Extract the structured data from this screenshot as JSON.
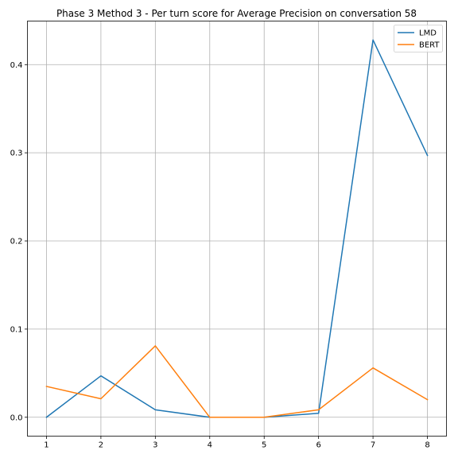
{
  "chart_data": {
    "type": "line",
    "title": "Phase 3 Method 3 - Per turn score for Average Precision on conversation 58",
    "xlabel": "",
    "ylabel": "",
    "x": [
      1,
      2,
      3,
      4,
      5,
      6,
      7,
      8
    ],
    "xticks": [
      "1",
      "2",
      "3",
      "4",
      "5",
      "6",
      "7",
      "8"
    ],
    "yticks": [
      "0.0",
      "0.1",
      "0.2",
      "0.3",
      "0.4"
    ],
    "xlim": [
      0.65,
      8.35
    ],
    "ylim": [
      -0.0214,
      0.4494
    ],
    "grid": true,
    "legend_position": "top-right",
    "series": [
      {
        "name": "LMD",
        "color": "#1f77b4",
        "values": [
          0.0,
          0.047,
          0.0085,
          0.0,
          0.0,
          0.0045,
          0.428,
          0.297
        ]
      },
      {
        "name": "BERT",
        "color": "#ff7f0e",
        "values": [
          0.035,
          0.021,
          0.081,
          0.0,
          0.0,
          0.0085,
          0.056,
          0.02
        ]
      }
    ]
  }
}
